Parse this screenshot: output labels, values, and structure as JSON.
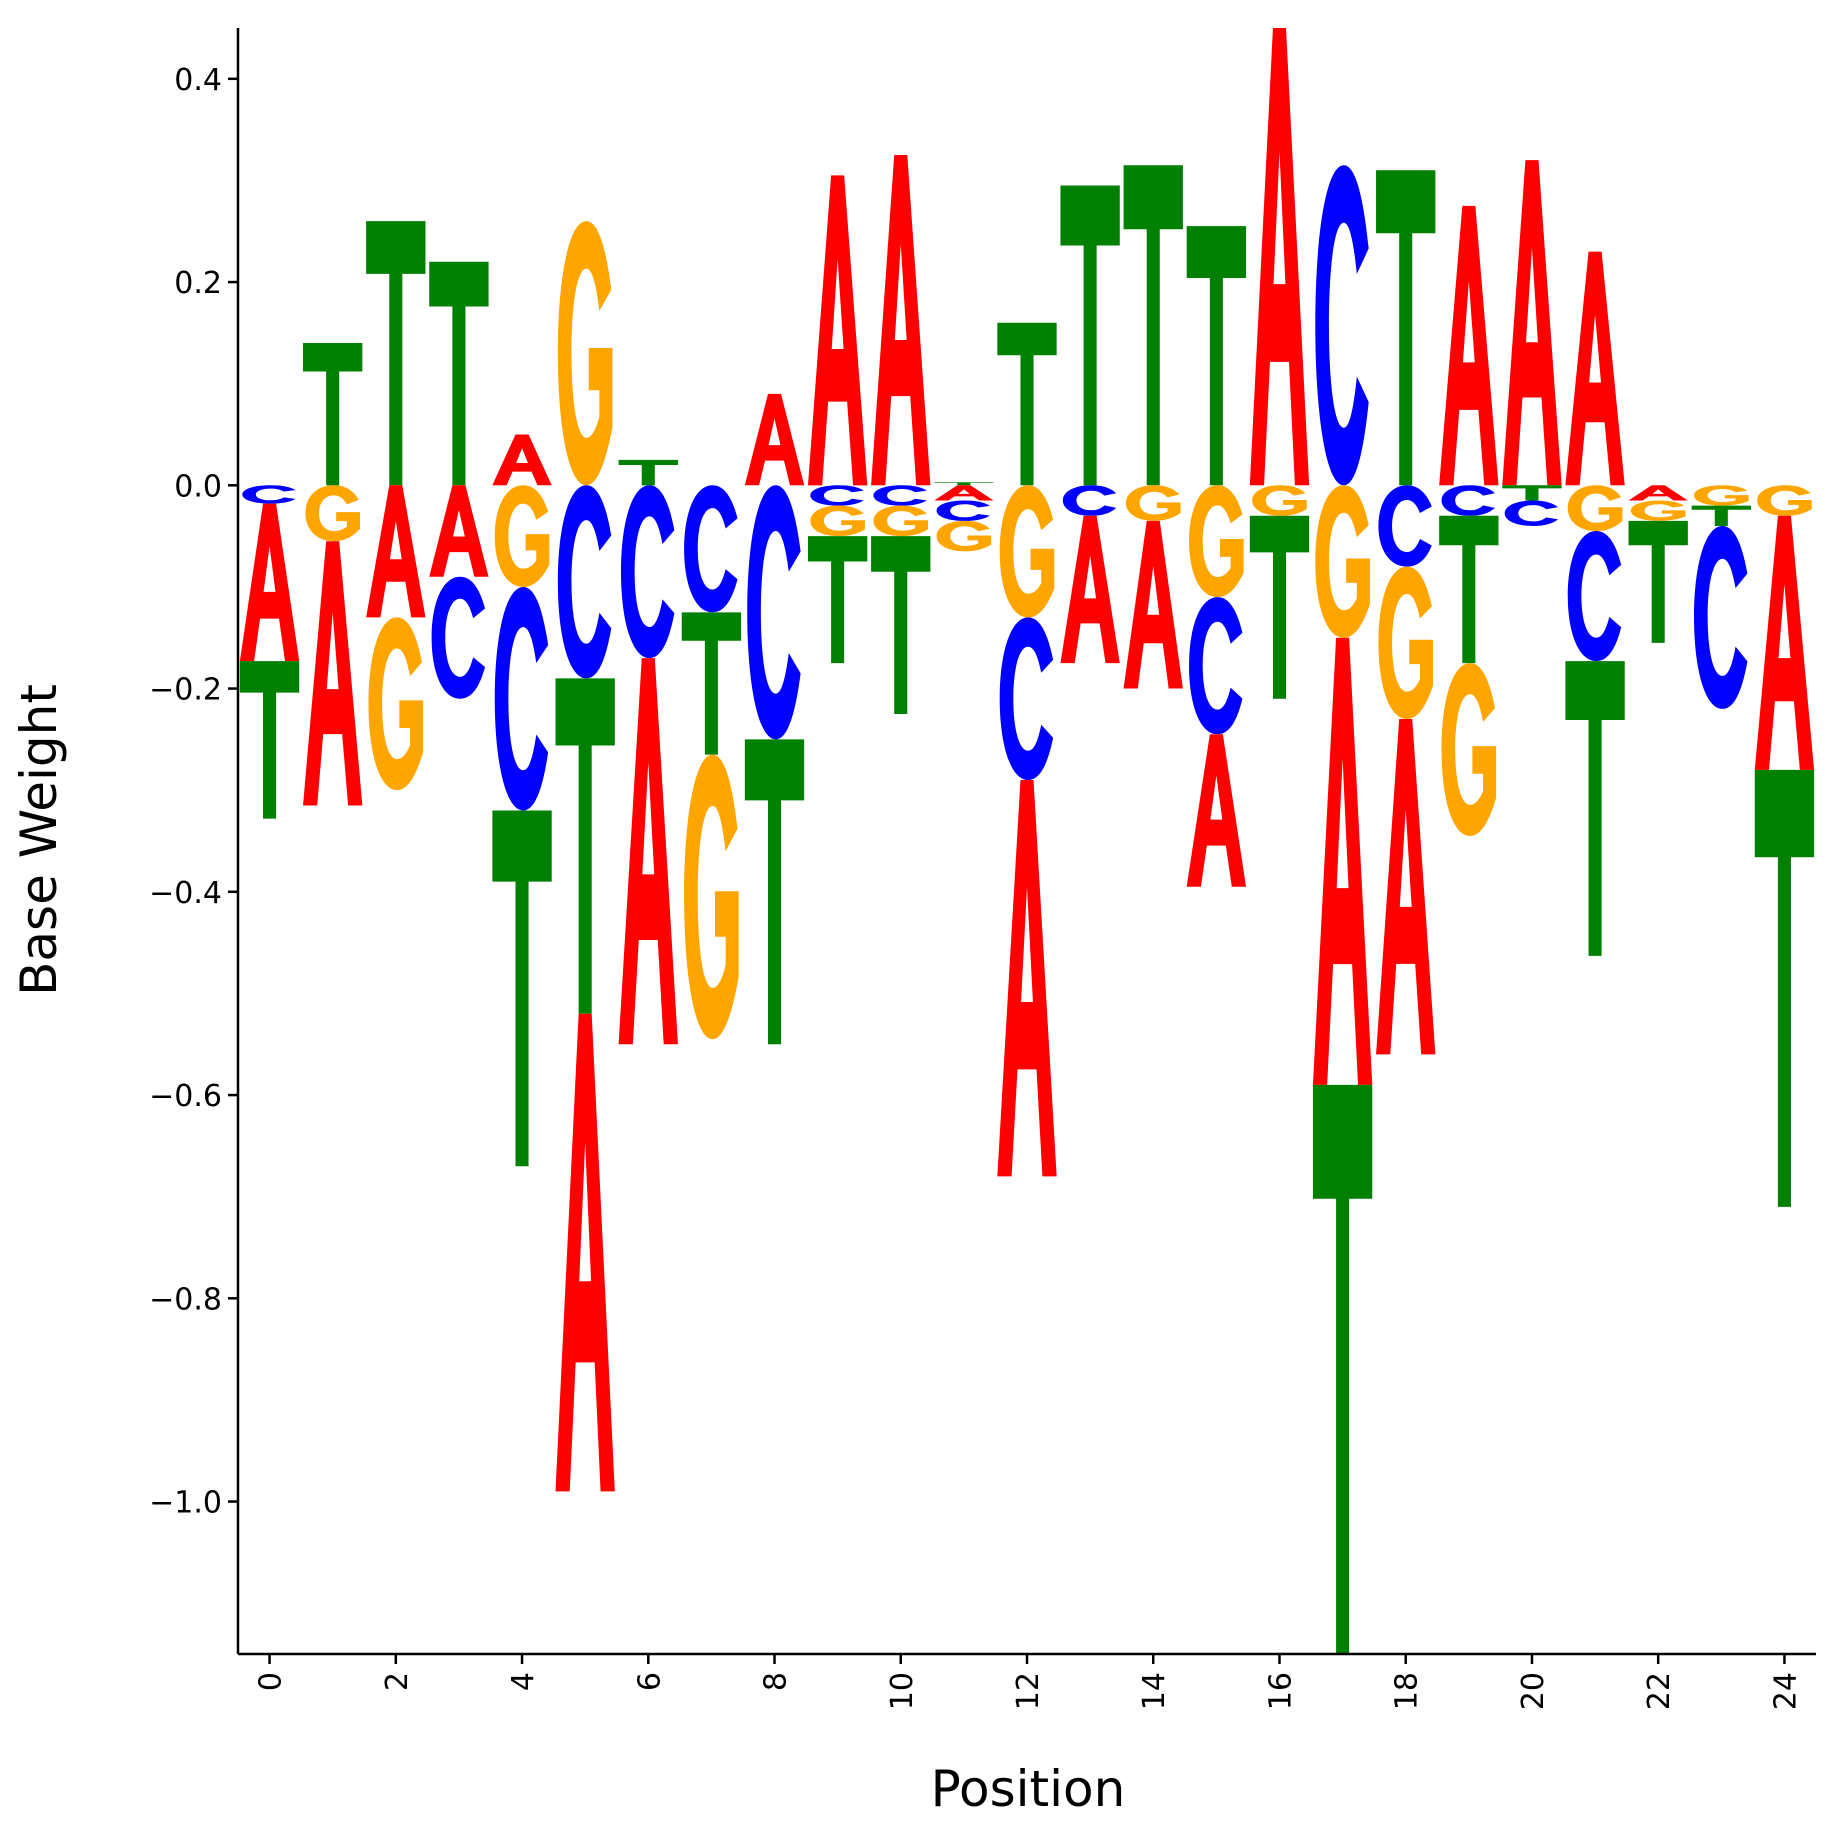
{
  "chart_data": {
    "type": "sequence-logo",
    "xlabel": "Position",
    "ylabel": "Base Weight",
    "xlim": [
      -0.5,
      24.5
    ],
    "ylim": [
      -1.15,
      0.45
    ],
    "xticks": [
      0,
      2,
      4,
      6,
      8,
      10,
      12,
      14,
      16,
      18,
      20,
      22,
      24
    ],
    "xtick_labels": [
      "0",
      "2",
      "4",
      "6",
      "8",
      "10",
      "12",
      "14",
      "16",
      "18",
      "20",
      "22",
      "24"
    ],
    "yticks": [
      -1.0,
      -0.8,
      -0.6,
      -0.4,
      -0.2,
      0.0,
      0.2,
      0.4
    ],
    "ytick_labels": [
      "−1.0",
      "−0.8",
      "−0.6",
      "−0.4",
      "−0.2",
      "0.0",
      "0.2",
      "0.4"
    ],
    "colors": {
      "A": "#ff0000",
      "C": "#0000ff",
      "G": "#ffa500",
      "T": "#008000"
    },
    "grid": false,
    "positions": [
      {
        "pos": 0,
        "A": -0.155,
        "C": -0.018,
        "G": 0.0,
        "T": -0.155
      },
      {
        "pos": 1,
        "A": -0.26,
        "C": 0.0,
        "G": -0.055,
        "T": 0.14
      },
      {
        "pos": 2,
        "A": -0.13,
        "C": 0.0,
        "G": -0.17,
        "T": 0.26
      },
      {
        "pos": 3,
        "A": -0.09,
        "C": -0.12,
        "G": 0.0,
        "T": 0.22
      },
      {
        "pos": 4,
        "A": 0.05,
        "C": -0.22,
        "G": -0.1,
        "T": -0.35
      },
      {
        "pos": 5,
        "A": -0.47,
        "C": -0.19,
        "G": 0.26,
        "T": -0.33
      },
      {
        "pos": 6,
        "A": -0.38,
        "C": -0.17,
        "G": 0.0,
        "T": 0.025
      },
      {
        "pos": 7,
        "A": 0.0,
        "C": -0.125,
        "G": -0.28,
        "T": -0.14
      },
      {
        "pos": 8,
        "A": 0.09,
        "C": -0.25,
        "G": 0.0,
        "T": -0.3
      },
      {
        "pos": 9,
        "A": 0.305,
        "C": -0.02,
        "G": -0.03,
        "T": -0.125
      },
      {
        "pos": 10,
        "A": 0.325,
        "C": -0.02,
        "G": -0.03,
        "T": -0.175
      },
      {
        "pos": 11,
        "A": -0.015,
        "C": -0.02,
        "G": -0.03,
        "T": 0.003
      },
      {
        "pos": 12,
        "A": -0.39,
        "C": -0.16,
        "G": -0.13,
        "T": 0.16
      },
      {
        "pos": 13,
        "A": -0.145,
        "C": -0.03,
        "G": 0.0,
        "T": 0.295
      },
      {
        "pos": 14,
        "A": -0.165,
        "C": 0.0,
        "G": -0.035,
        "T": 0.315
      },
      {
        "pos": 15,
        "A": -0.15,
        "C": -0.135,
        "G": -0.11,
        "T": 0.255
      },
      {
        "pos": 16,
        "A": 0.45,
        "C": 0.0,
        "G": -0.03,
        "T": -0.18
      },
      {
        "pos": 17,
        "A": -0.44,
        "C": 0.315,
        "G": -0.15,
        "T": -0.56
      },
      {
        "pos": 18,
        "A": -0.33,
        "C": -0.08,
        "G": -0.15,
        "T": 0.31
      },
      {
        "pos": 19,
        "A": 0.275,
        "C": -0.03,
        "G": -0.17,
        "T": -0.145
      },
      {
        "pos": 20,
        "A": 0.32,
        "C": -0.025,
        "G": 0.0,
        "T": -0.015
      },
      {
        "pos": 21,
        "A": 0.23,
        "C": -0.128,
        "G": -0.045,
        "T": -0.29
      },
      {
        "pos": 22,
        "A": -0.015,
        "C": 0.0,
        "G": -0.02,
        "T": -0.12
      },
      {
        "pos": 23,
        "A": 0.0,
        "C": -0.18,
        "G": -0.02,
        "T": -0.02
      },
      {
        "pos": 24,
        "A": -0.25,
        "C": 0.0,
        "G": -0.03,
        "T": -0.43
      }
    ]
  }
}
